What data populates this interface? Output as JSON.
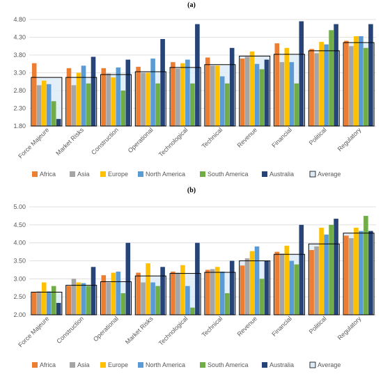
{
  "series_colors": {
    "Africa": "#ED7D31",
    "Asia": "#A5A5A5",
    "Europe": "#FFC000",
    "North America": "#5B9BD5",
    "South America": "#70AD47",
    "Australia": "#264478",
    "Average": "#DDEBF7"
  },
  "average_outline": "#000000",
  "chart_data": [
    {
      "type": "bar",
      "title": "(a)",
      "categories": [
        "Force Majeure",
        "Market Risks",
        "Construction",
        "Operational",
        "Technological",
        "Technical",
        "Revenue",
        "Financial",
        "Political",
        "Regulatory"
      ],
      "ylim": [
        1.8,
        4.8
      ],
      "yticks": [
        "1.80",
        "2.30",
        "2.80",
        "3.30",
        "3.80",
        "4.30",
        "4.80"
      ],
      "ytick_values": [
        1.8,
        2.3,
        2.8,
        3.3,
        3.8,
        4.3,
        4.8
      ],
      "series": [
        {
          "name": "Africa",
          "values": [
            3.57,
            3.43,
            3.43,
            3.47,
            3.6,
            3.73,
            3.7,
            4.13,
            3.97,
            4.2
          ]
        },
        {
          "name": "Asia",
          "values": [
            2.95,
            2.95,
            3.28,
            3.3,
            3.42,
            3.5,
            3.75,
            3.6,
            3.85,
            4.05
          ]
        },
        {
          "name": "Europe",
          "values": [
            3.08,
            3.3,
            3.17,
            3.3,
            3.57,
            3.5,
            3.9,
            4.0,
            4.17,
            4.33
          ]
        },
        {
          "name": "North America",
          "values": [
            2.98,
            3.5,
            3.45,
            3.7,
            3.67,
            3.2,
            3.55,
            3.6,
            4.1,
            4.33
          ]
        },
        {
          "name": "South America",
          "values": [
            2.5,
            3.0,
            2.8,
            3.0,
            3.0,
            3.0,
            3.4,
            3.0,
            4.5,
            4.0
          ]
        },
        {
          "name": "Australia",
          "values": [
            2.0,
            3.75,
            3.67,
            4.25,
            4.67,
            4.0,
            3.67,
            4.75,
            4.67,
            4.67
          ]
        },
        {
          "name": "Average",
          "values": [
            3.17,
            3.17,
            3.25,
            3.33,
            3.45,
            3.53,
            3.77,
            3.82,
            3.92,
            4.15
          ]
        }
      ],
      "legend": "bottom"
    },
    {
      "type": "bar",
      "title": "(b)",
      "categories": [
        "Force Majeure",
        "Construction",
        "Operational",
        "Market Risks",
        "Technological",
        "Technical",
        "Revenue",
        "Financial",
        "Political",
        "Regulatory"
      ],
      "ylim": [
        2.0,
        5.0
      ],
      "yticks": [
        "2.00",
        "2.50",
        "3.00",
        "3.50",
        "4.00",
        "4.50",
        "5.00"
      ],
      "ytick_values": [
        2.0,
        2.5,
        3.0,
        3.5,
        4.0,
        4.5,
        5.0
      ],
      "series": [
        {
          "name": "Africa",
          "values": [
            2.63,
            2.8,
            3.1,
            3.17,
            3.2,
            3.25,
            3.37,
            3.75,
            3.8,
            4.2
          ]
        },
        {
          "name": "Asia",
          "values": [
            2.65,
            3.0,
            2.9,
            2.9,
            3.17,
            3.27,
            3.57,
            3.7,
            3.9,
            4.13
          ]
        },
        {
          "name": "Europe",
          "values": [
            2.9,
            2.9,
            3.17,
            3.43,
            3.38,
            3.33,
            3.77,
            3.92,
            4.42,
            4.42
          ]
        },
        {
          "name": "North America",
          "values": [
            2.65,
            2.88,
            3.2,
            2.9,
            2.8,
            3.2,
            3.9,
            3.5,
            4.23,
            4.33
          ]
        },
        {
          "name": "South America",
          "values": [
            2.8,
            2.8,
            2.6,
            2.8,
            2.2,
            2.6,
            3.0,
            3.4,
            4.5,
            4.75
          ]
        },
        {
          "name": "Australia",
          "values": [
            2.33,
            3.33,
            4.0,
            3.33,
            4.0,
            3.5,
            3.5,
            4.5,
            4.67,
            4.33
          ]
        },
        {
          "name": "Average",
          "values": [
            2.63,
            2.82,
            2.92,
            3.08,
            3.15,
            3.18,
            3.5,
            3.68,
            3.97,
            4.27
          ]
        }
      ],
      "legend": "bottom"
    }
  ]
}
